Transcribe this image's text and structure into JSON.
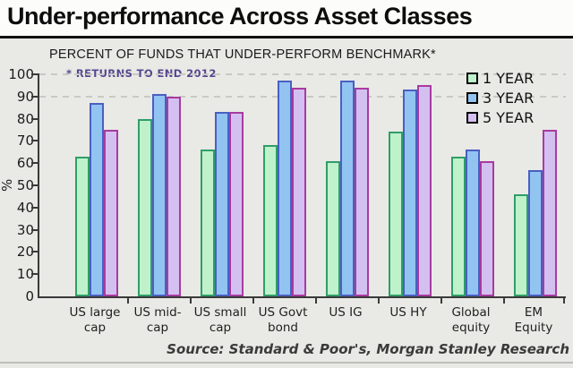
{
  "header": {
    "title": "Under-performance Across Asset Classes"
  },
  "subtitle": "PERCENT OF FUNDS THAT UNDER-PERFORM BENCHMARK*",
  "note": "* RETURNS TO END 2012",
  "source": "Source: Standard & Poor's, Morgan Stanley Research",
  "colors": {
    "green_fill": "#bff2cb",
    "green_border": "#2f9e68",
    "blue_fill": "#92c4f2",
    "blue_border": "#4a5fc2",
    "purple_fill": "#d4c0f0",
    "purple_border": "#a83ba0",
    "background": "#e9e9e5",
    "title_background": "#fcfcfa"
  },
  "yaxis": {
    "label": "%",
    "ticks": [
      0,
      10,
      20,
      30,
      40,
      50,
      60,
      70,
      80,
      90,
      100
    ]
  },
  "chart_data": {
    "type": "bar",
    "title": "PERCENT OF FUNDS THAT UNDER-PERFORM BENCHMARK*",
    "xlabel": "",
    "ylabel": "%",
    "ylim": [
      0,
      100
    ],
    "ytick_step": 10,
    "grid": "dashed horizontal lines at 90 and 100 only",
    "gridlines_at": [
      90,
      100
    ],
    "legend_position": "top-right",
    "categories": [
      "US large cap",
      "US mid- cap",
      "US small cap",
      "US Govt bond",
      "US IG",
      "US HY",
      "Global equity",
      "EM Equity"
    ],
    "categories_twoline": [
      [
        "US large",
        "cap"
      ],
      [
        "US mid-",
        "cap"
      ],
      [
        "US small",
        "cap"
      ],
      [
        "US Govt",
        "bond"
      ],
      [
        "US IG",
        ""
      ],
      [
        "US HY",
        ""
      ],
      [
        "Global",
        "equity"
      ],
      [
        "EM",
        "Equity"
      ]
    ],
    "series": [
      {
        "name": "1 YEAR",
        "values": [
          63,
          80,
          66,
          68,
          61,
          74,
          63,
          46
        ]
      },
      {
        "name": "3 YEAR",
        "values": [
          87,
          91,
          83,
          97,
          97,
          93,
          66,
          57
        ]
      },
      {
        "name": "5 YEAR",
        "values": [
          75,
          90,
          83,
          94,
          94,
          95,
          61,
          75
        ]
      }
    ]
  }
}
